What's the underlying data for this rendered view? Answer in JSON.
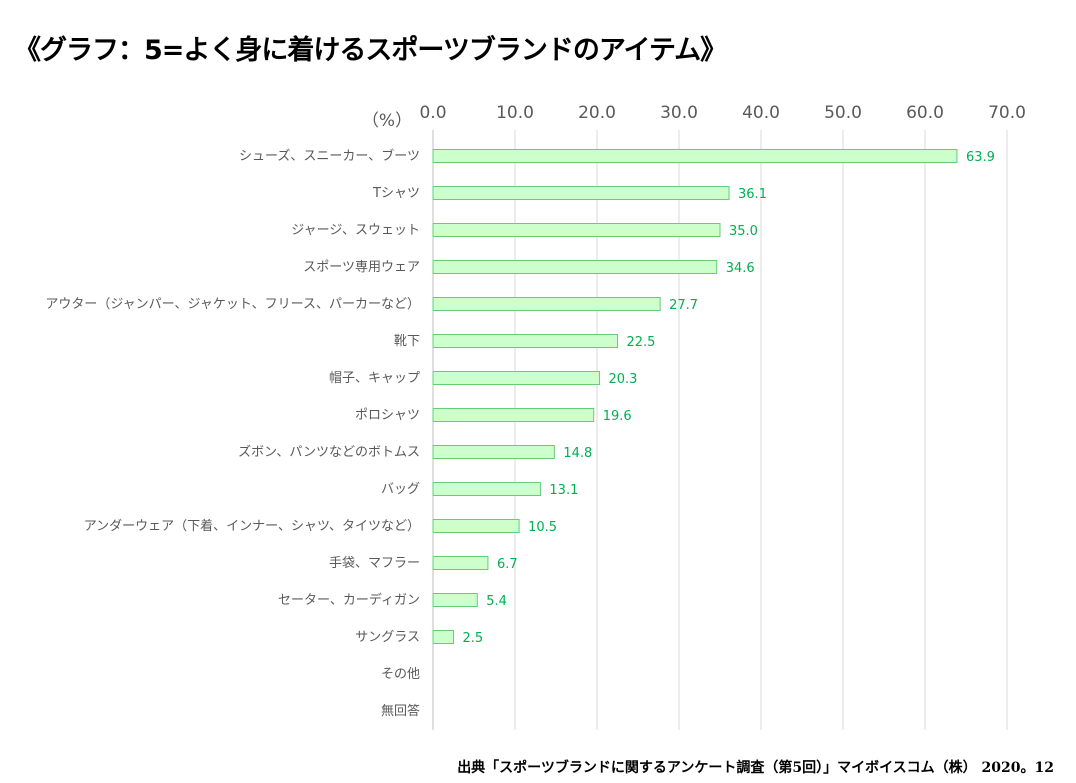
{
  "title": "《グラフ：5=よく身に着けるスポーツブランドのアイテム》",
  "source": "出典「スポーツブランドに関するアンケート調査（第5回）」マイボイスコム（株） 2020。12",
  "chart_data": {
    "type": "bar",
    "orientation": "horizontal",
    "title": "《グラフ：5=よく身に着けるスポーツブランドのアイテム》",
    "unit_label": "（%）",
    "xlim": [
      0,
      70
    ],
    "xticks": [
      "0.0",
      "10.0",
      "20.0",
      "30.0",
      "40.0",
      "50.0",
      "60.0",
      "70.0"
    ],
    "axis_position": "top",
    "grid": true,
    "legend": "none",
    "bar_color": "#ccffcc",
    "bar_border_color": "#66cc77",
    "label_color": "#00b050",
    "categories": [
      "シューズ、スニーカー、ブーツ",
      "Tシャツ",
      "ジャージ、スウェット",
      "スポーツ専用ウェア",
      "アウター（ジャンパー、ジャケット、フリース、パーカーなど）",
      "靴下",
      "帽子、キャップ",
      "ポロシャツ",
      "ズボン、パンツなどのボトムス",
      "バッグ",
      "アンダーウェア（下着、インナー、シャツ、タイツなど）",
      "手袋、マフラー",
      "セーター、カーディガン",
      "サングラス",
      "その他",
      "無回答"
    ],
    "values": [
      63.9,
      36.1,
      35.0,
      34.6,
      27.7,
      22.5,
      20.3,
      19.6,
      14.8,
      13.1,
      10.5,
      6.7,
      5.4,
      2.5,
      null,
      null
    ],
    "data_labels": [
      "63.9",
      "36.1",
      "35.0",
      "34.6",
      "27.7",
      "22.5",
      "20.3",
      "19.6",
      "14.8",
      "13.1",
      "10.5",
      "6.7",
      "5.4",
      "2.5",
      "",
      ""
    ]
  }
}
